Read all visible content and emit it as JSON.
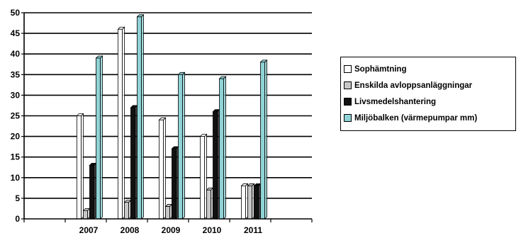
{
  "chart_data": {
    "type": "bar",
    "categories": [
      "",
      "2007",
      "2008",
      "2009",
      "2010",
      "2011",
      ""
    ],
    "y_ticks": [
      "0",
      "5",
      "10",
      "15",
      "20",
      "25",
      "30",
      "35",
      "40",
      "45",
      "50"
    ],
    "ylim": [
      0,
      50
    ],
    "grid": true,
    "legend_position": "right",
    "series": [
      {
        "name": "Sophämtning",
        "color": "#ffffff",
        "values": [
          null,
          25,
          46,
          24,
          20,
          8,
          null
        ]
      },
      {
        "name": "Enskilda avloppsanläggningar",
        "color": "#c8c8c8",
        "values": [
          null,
          2,
          4,
          3,
          7,
          8,
          null
        ]
      },
      {
        "name": "Livsmedelshantering",
        "color": "#111111",
        "values": [
          null,
          13,
          27,
          17,
          26,
          8,
          null
        ]
      },
      {
        "name": "Miljöbalken (värmepumpar mm)",
        "color": "#8fd3d6",
        "values": [
          null,
          39,
          49,
          35,
          34,
          38,
          null
        ]
      }
    ]
  }
}
